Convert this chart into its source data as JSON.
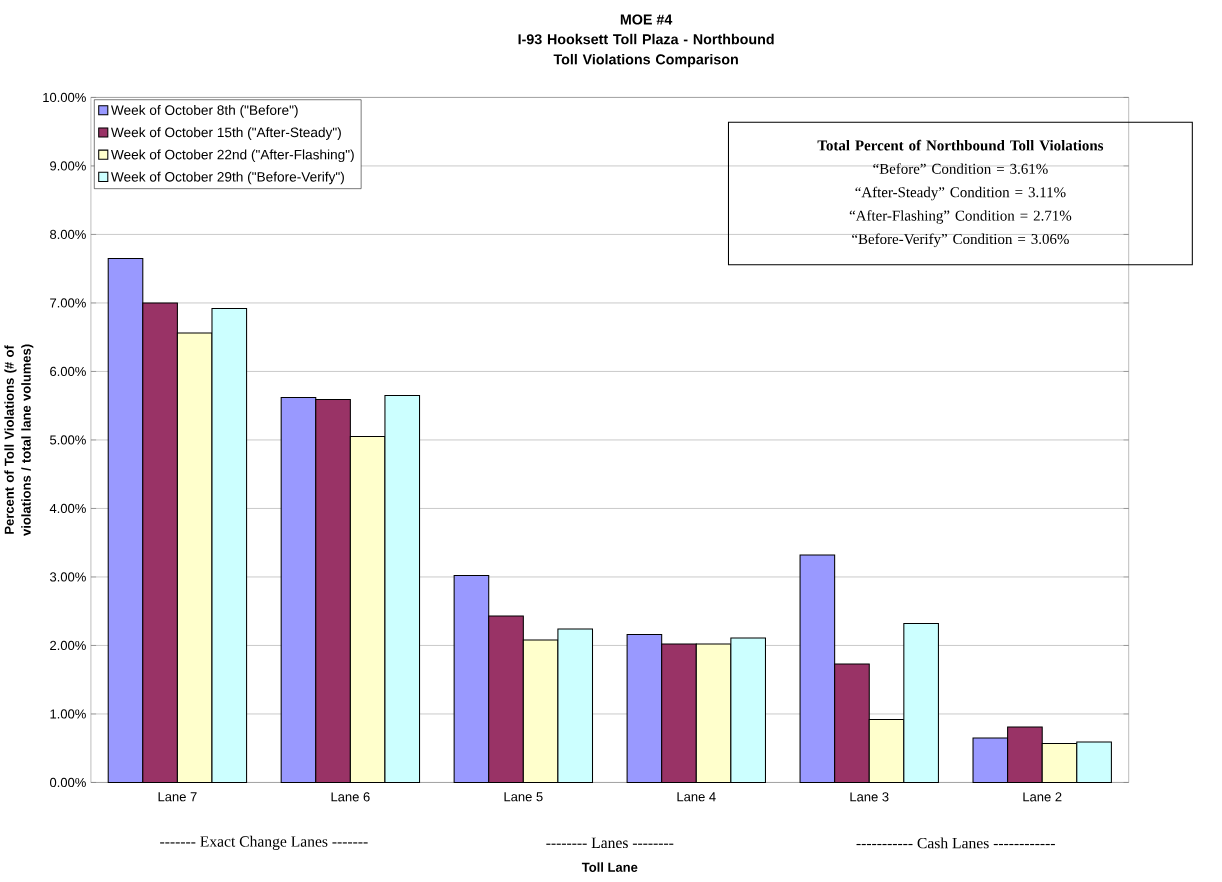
{
  "chart_data": {
    "type": "bar",
    "title": "MOE #4",
    "subtitle": "I-93 Hooksett Toll Plaza - Northbound Toll Violations Comparison",
    "xlabel": "Toll Lane",
    "ylabel": "Percent of Toll Violations (# of violations / total lane volumes)",
    "categories": [
      "Lane 7",
      "Lane 6",
      "Lane 5",
      "Lane 4",
      "Lane 3",
      "Lane 2"
    ],
    "series": [
      {
        "name": "Week of October 8th (\"Before\")",
        "color": "#9999ff",
        "values": [
          7.65,
          5.62,
          3.02,
          2.16,
          3.32,
          0.65
        ]
      },
      {
        "name": "Week of October 15th (\"After-Steady\")",
        "color": "#993366",
        "values": [
          7.0,
          5.59,
          2.43,
          2.02,
          1.73,
          0.81
        ]
      },
      {
        "name": "Week of October 22nd (\"After-Flashing\")",
        "color": "#ffffcc",
        "values": [
          6.56,
          5.05,
          2.08,
          2.02,
          0.92,
          0.57
        ]
      },
      {
        "name": "Week of October 29th (\"Before-Verify\")",
        "color": "#ccffff",
        "values": [
          6.92,
          5.65,
          2.24,
          2.11,
          2.32,
          0.59
        ]
      }
    ],
    "ylim": [
      0,
      10
    ],
    "yticks": [
      {
        "value": 0,
        "label": "0.00%"
      },
      {
        "value": 1,
        "label": "1.00%"
      },
      {
        "value": 2,
        "label": "2.00%"
      },
      {
        "value": 3,
        "label": "3.00%"
      },
      {
        "value": 4,
        "label": "4.00%"
      },
      {
        "value": 5,
        "label": "5.00%"
      },
      {
        "value": 6,
        "label": "6.00%"
      },
      {
        "value": 7,
        "label": "7.00%"
      },
      {
        "value": 8,
        "label": "8.00%"
      },
      {
        "value": 9,
        "label": "9.00%"
      },
      {
        "value": 10,
        "label": "10.00%"
      }
    ],
    "grid": "y",
    "legend": "top left",
    "annotations": [
      "Total Percent of Northbound Toll Violations",
      "“Before” Condition = 3.61%",
      "“After-Steady” Condition = 3.11%",
      "“After-Flashing” Condition = 2.71%",
      "“Before-Verify” Condition = 3.06%",
      "------- Exact Change Lanes -------",
      "-------- Lanes --------",
      "----------- Cash Lanes ------------"
    ]
  }
}
